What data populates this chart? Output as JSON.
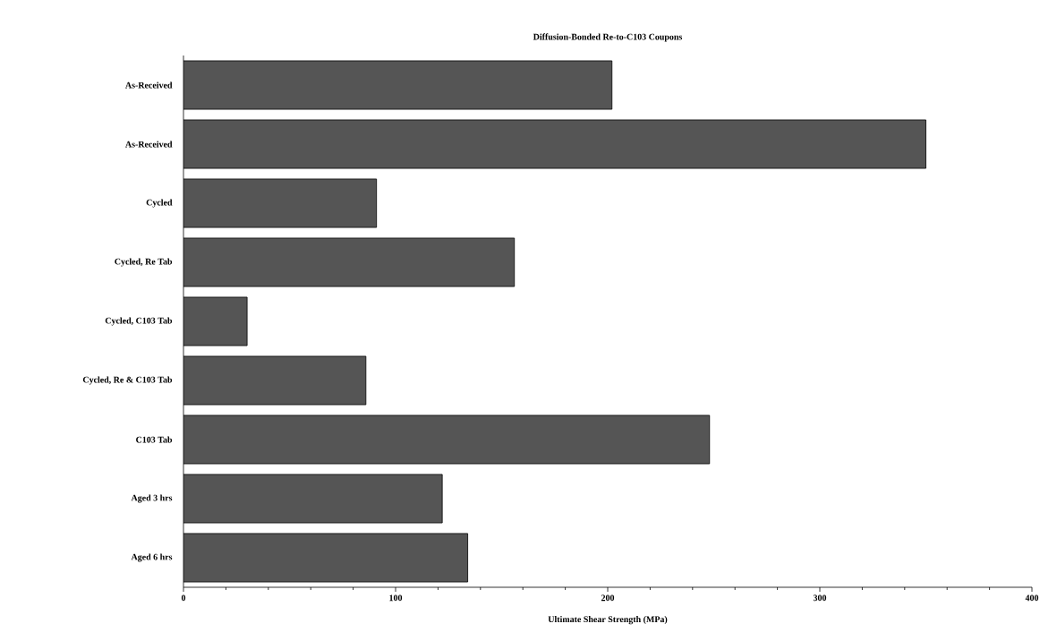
{
  "chart_data": {
    "type": "bar",
    "orientation": "horizontal",
    "title": "Diffusion-Bonded  Re-to-C103  Coupons",
    "xlabel": "Ultimate Shear Strength (MPa)",
    "categories": [
      "As-Received",
      "As-Received",
      "Cycled",
      "Cycled, Re Tab",
      "Cycled, C103 Tab",
      "Cycled, Re & C103 Tab",
      "C103 Tab",
      "Aged 3 hrs",
      "Aged 6 hrs"
    ],
    "values": [
      202,
      350,
      91,
      156,
      30,
      86,
      248,
      122,
      134
    ],
    "color": "#555555",
    "xlim": [
      0,
      400
    ],
    "xticks": [
      0,
      100,
      200,
      300,
      400
    ],
    "grid": false
  }
}
